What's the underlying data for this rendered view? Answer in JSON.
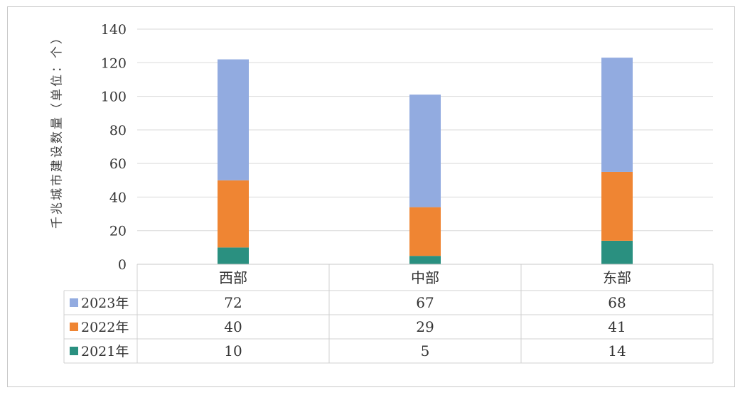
{
  "chart_data": {
    "type": "bar",
    "stacked": true,
    "categories": [
      "西部",
      "中部",
      "东部"
    ],
    "series": [
      {
        "name": "2021年",
        "values": [
          10,
          5,
          14
        ],
        "color": "#2a9080"
      },
      {
        "name": "2022年",
        "values": [
          40,
          29,
          41
        ],
        "color": "#ef8533"
      },
      {
        "name": "2023年",
        "values": [
          72,
          67,
          68
        ],
        "color": "#92abe0"
      }
    ],
    "ylabel": "千兆城市建设数量（单位：个）",
    "ylim": [
      0,
      140
    ],
    "yticks": [
      0,
      20,
      40,
      60,
      80,
      100,
      120,
      140
    ],
    "grid": true,
    "data_table": true,
    "table_row_order": [
      "2023年",
      "2022年",
      "2021年"
    ]
  }
}
